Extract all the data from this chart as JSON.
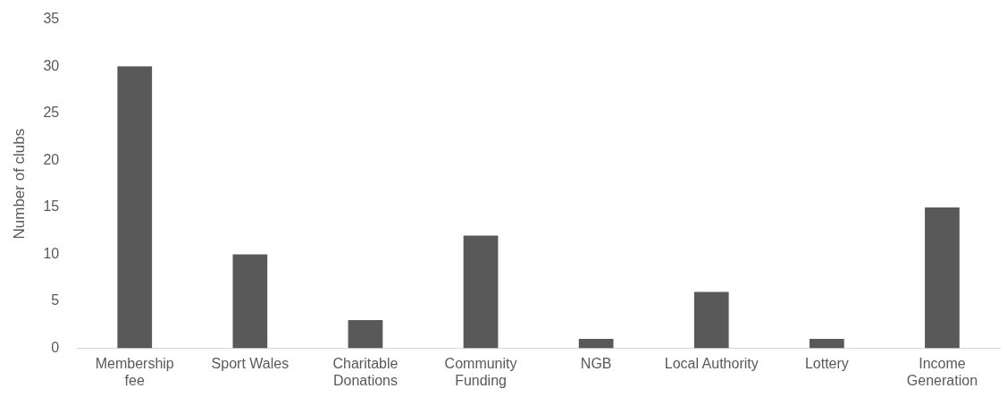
{
  "chart_data": {
    "type": "bar",
    "ylabel": "Number of clubs",
    "categories": [
      "Membership fee",
      "Sport Wales",
      "Charitable Donations",
      "Community Funding",
      "NGB",
      "Local Authority",
      "Lottery",
      "Income Generation"
    ],
    "values": [
      30,
      10,
      3,
      12,
      1,
      6,
      1,
      15
    ],
    "color": "#595959",
    "ylim": [
      0,
      35
    ],
    "yticks": [
      0,
      5,
      10,
      15,
      20,
      25,
      30,
      35
    ],
    "grid": false,
    "legend": false
  }
}
